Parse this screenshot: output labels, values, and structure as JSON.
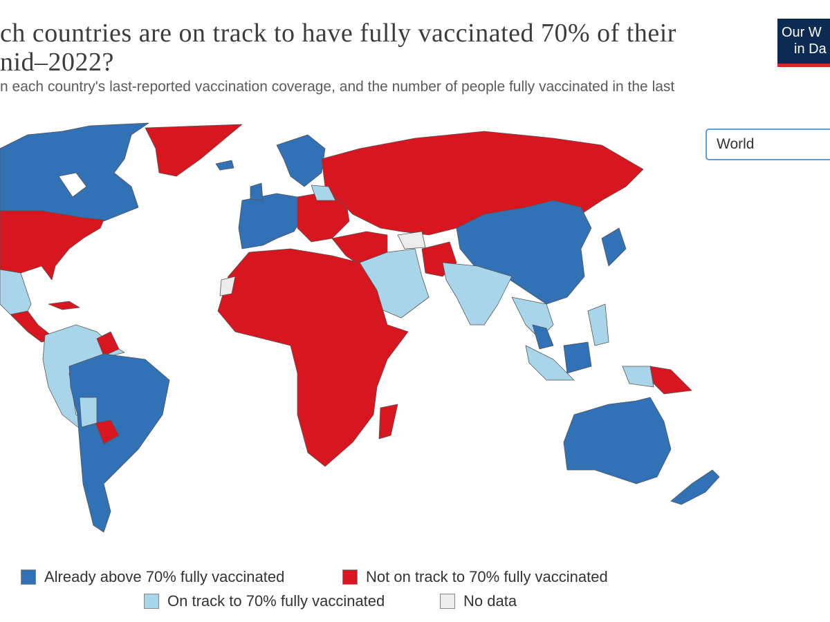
{
  "header": {
    "title_lines": [
      "ch countries are on track to have fully vaccinated 70% of their",
      "nid–2022?"
    ],
    "subtitle": "n each country's last-reported vaccination coverage, and the number of people fully vaccinated in the last",
    "logo_lines": [
      "Our W",
      "in Da"
    ]
  },
  "controls": {
    "region_select": "World"
  },
  "legend": {
    "items": [
      {
        "label": "Already above 70% fully vaccinated",
        "color": "#3072b5"
      },
      {
        "label": "Not on track to 70% fully vaccinated",
        "color": "#d8161f"
      },
      {
        "label": "On track to 70% fully vaccinated",
        "color": "#a9d5ea"
      },
      {
        "label": "No data",
        "color": "#ececec"
      }
    ]
  }
}
